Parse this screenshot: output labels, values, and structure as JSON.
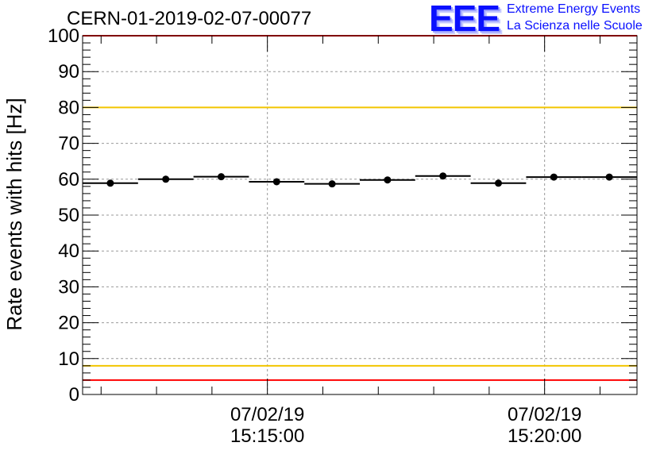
{
  "header": {
    "title": "CERN-01-2019-02-07-00077",
    "logo_text": "EEE",
    "logo_line1": "Extreme Energy Events",
    "logo_line2": "La Scienza nelle Scuole",
    "logo_color": "#0a10ff"
  },
  "chart_data": {
    "type": "scatter",
    "title": "CERN-01-2019-02-07-00077",
    "ylabel": "Rate events with hits [Hz]",
    "xlabel": "",
    "ylim": [
      0,
      100
    ],
    "xlim": [
      "15:11:40",
      "15:21:40"
    ],
    "y_ticks": [
      "0",
      "10",
      "20",
      "30",
      "40",
      "50",
      "60",
      "70",
      "80",
      "90",
      "100"
    ],
    "x_ticks": [
      {
        "time": "15:15:00",
        "label_date": "07/02/19",
        "label_time": "15:15:00"
      },
      {
        "time": "15:20:00",
        "label_date": "07/02/19",
        "label_time": "15:20:00"
      }
    ],
    "grid": true,
    "points": [
      {
        "x_start": "15:11:40",
        "x_end": "15:12:40",
        "y": 58.9
      },
      {
        "x_start": "15:12:40",
        "x_end": "15:13:40",
        "y": 60.0
      },
      {
        "x_start": "15:13:40",
        "x_end": "15:14:40",
        "y": 60.7
      },
      {
        "x_start": "15:14:40",
        "x_end": "15:15:40",
        "y": 59.3
      },
      {
        "x_start": "15:15:40",
        "x_end": "15:16:40",
        "y": 58.7
      },
      {
        "x_start": "15:16:40",
        "x_end": "15:17:40",
        "y": 59.8
      },
      {
        "x_start": "15:17:40",
        "x_end": "15:18:40",
        "y": 60.9
      },
      {
        "x_start": "15:18:40",
        "x_end": "15:19:40",
        "y": 58.9
      },
      {
        "x_start": "15:19:40",
        "x_end": "15:20:40",
        "y": 60.6
      },
      {
        "x_start": "15:20:40",
        "x_end": "15:21:40",
        "y": 60.6
      }
    ],
    "reference_lines": [
      {
        "y": 100,
        "color": "#ff0000"
      },
      {
        "y": 80,
        "color": "#f2c500"
      },
      {
        "y": 8,
        "color": "#f2c500"
      },
      {
        "y": 4,
        "color": "#ff0000"
      }
    ]
  }
}
